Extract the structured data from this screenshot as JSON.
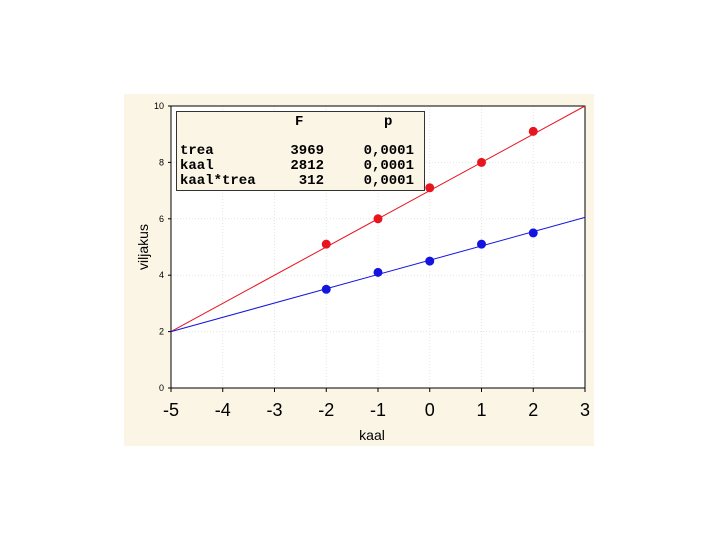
{
  "chart_data": {
    "type": "line",
    "xlabel": "kaal",
    "ylabel": "viljakus",
    "xlim": [
      -5,
      3
    ],
    "ylim": [
      0,
      10
    ],
    "x_ticks": [
      "-5",
      "-4",
      "-3",
      "-2",
      "-1",
      "0",
      "1",
      "2",
      "3"
    ],
    "y_ticks": [
      "0",
      "2",
      "4",
      "6",
      "8",
      "10"
    ],
    "grid": true,
    "series": [
      {
        "color": "#e8141e",
        "points": [
          [
            -2,
            5.1
          ],
          [
            -1,
            6.0
          ],
          [
            0,
            7.1
          ],
          [
            1,
            8.0
          ],
          [
            2,
            9.1
          ]
        ],
        "fit_line": [
          [
            -5,
            2.0
          ],
          [
            3,
            10.0
          ]
        ]
      },
      {
        "color": "#1414e0",
        "points": [
          [
            -2,
            3.5
          ],
          [
            -1,
            4.1
          ],
          [
            0,
            4.5
          ],
          [
            1,
            5.1
          ],
          [
            2,
            5.5
          ]
        ],
        "fit_line": [
          [
            -5,
            2.0
          ],
          [
            3,
            6.05
          ]
        ]
      }
    ],
    "stats_table": {
      "columns": [
        "",
        "F",
        "p"
      ],
      "rows": [
        {
          "term": "trea",
          "F": "3969",
          "p": "0,0001"
        },
        {
          "term": "kaal",
          "F": "2812",
          "p": "0,0001"
        },
        {
          "term": "kaal*trea",
          "F": "312",
          "p": "0,0001"
        }
      ]
    }
  }
}
